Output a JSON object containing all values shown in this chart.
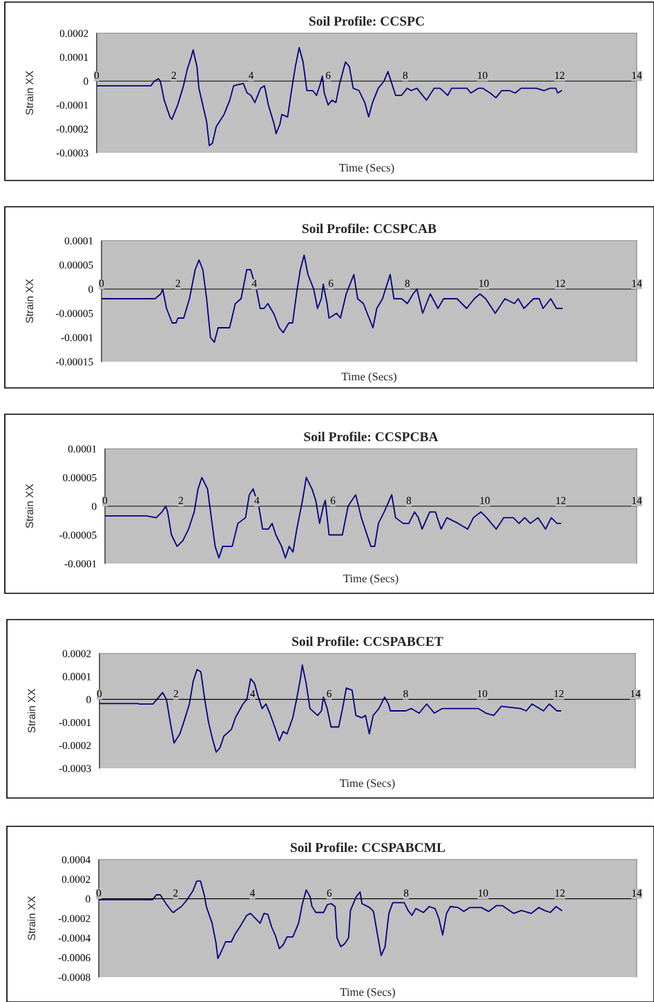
{
  "chart_data": [
    {
      "type": "line",
      "title": "Soil Profile: CCSPC",
      "xlabel": "Time (Secs)",
      "ylabel": "Strain XX",
      "xlim": [
        0,
        14
      ],
      "xticks": [
        0,
        2,
        4,
        6,
        8,
        10,
        12,
        14
      ],
      "ylim": [
        -0.0003,
        0.0002
      ],
      "yticks": [
        {
          "value": -0.0003,
          "label": "-0.0003"
        },
        {
          "value": -0.0002,
          "label": "-0.0002"
        },
        {
          "value": -0.0001,
          "label": "-0.0001"
        },
        {
          "value": 0,
          "label": "0"
        },
        {
          "value": 0.0001,
          "label": "0.0001"
        },
        {
          "value": 0.0002,
          "label": "0.0002"
        }
      ],
      "x": [
        0,
        1.4,
        1.5,
        1.6,
        1.65,
        1.75,
        1.9,
        1.95,
        2.1,
        2.25,
        2.35,
        2.45,
        2.5,
        2.6,
        2.65,
        2.75,
        2.85,
        2.92,
        3.0,
        3.1,
        3.3,
        3.45,
        3.55,
        3.8,
        3.9,
        4.0,
        4.1,
        4.25,
        4.35,
        4.45,
        4.6,
        4.65,
        4.75,
        4.8,
        4.95,
        5.05,
        5.15,
        5.25,
        5.35,
        5.45,
        5.6,
        5.7,
        5.8,
        5.85,
        5.9,
        6.0,
        6.1,
        6.2,
        6.3,
        6.45,
        6.55,
        6.65,
        6.8,
        6.95,
        7.05,
        7.15,
        7.3,
        7.45,
        7.55,
        7.65,
        7.75,
        7.9,
        8.05,
        8.15,
        8.3,
        8.55,
        8.75,
        8.9,
        9.1,
        9.2,
        9.6,
        9.7,
        9.9,
        10.0,
        10.2,
        10.35,
        10.5,
        10.7,
        10.85,
        11.0,
        11.4,
        11.6,
        11.75,
        11.9,
        11.95,
        12.05
      ],
      "series": [
        {
          "color": "#000080",
          "values": [
            -2e-05,
            -2e-05,
            0,
            1e-05,
            0,
            -8e-05,
            -0.00015,
            -0.00016,
            -0.0001,
            -2e-05,
            5e-05,
            0.0001,
            0.00013,
            6e-05,
            -3e-05,
            -0.0001,
            -0.00017,
            -0.00027,
            -0.00026,
            -0.00019,
            -0.00014,
            -8e-05,
            -2e-05,
            -1e-05,
            -5e-05,
            -6e-05,
            -9e-05,
            -3e-05,
            -2e-05,
            -0.0001,
            -0.00018,
            -0.00022,
            -0.00018,
            -0.00014,
            -0.00015,
            -4e-05,
            6e-05,
            0.00014,
            8e-05,
            -4e-05,
            -4e-05,
            -6e-05,
            -1e-05,
            2e-05,
            -5e-05,
            -0.0001,
            -8e-05,
            -9e-05,
            -1e-05,
            8e-05,
            6e-05,
            -3e-05,
            -4e-05,
            -9e-05,
            -0.00015,
            -9e-05,
            -3e-05,
            0,
            4e-05,
            -1e-05,
            -6e-05,
            -6e-05,
            -3e-05,
            -4e-05,
            -3e-05,
            -8e-05,
            -3e-05,
            -3e-05,
            -6e-05,
            -3e-05,
            -3e-05,
            -5e-05,
            -3e-05,
            -3e-05,
            -5e-05,
            -7e-05,
            -4e-05,
            -4e-05,
            -5e-05,
            -3e-05,
            -3e-05,
            -4e-05,
            -3e-05,
            -3e-05,
            -5e-05,
            -4e-05
          ]
        }
      ]
    },
    {
      "type": "line",
      "title": "Soil Profile: CCSPCAB",
      "xlabel": "Time (Secs)",
      "ylabel": "Strain XX",
      "xlim": [
        0,
        14
      ],
      "xticks": [
        0,
        2,
        4,
        6,
        8,
        10,
        12,
        14
      ],
      "ylim": [
        -0.00015,
        0.0001
      ],
      "yticks": [
        {
          "value": -0.00015,
          "label": "-0.00015"
        },
        {
          "value": -0.0001,
          "label": "-0.0001"
        },
        {
          "value": -5e-05,
          "label": "-0.00005"
        },
        {
          "value": 0,
          "label": "0"
        },
        {
          "value": 5e-05,
          "label": "0.00005"
        },
        {
          "value": 0.0001,
          "label": "0.0001"
        }
      ],
      "x": [
        0,
        1.4,
        1.55,
        1.6,
        1.7,
        1.85,
        1.95,
        2.0,
        2.15,
        2.3,
        2.45,
        2.55,
        2.65,
        2.75,
        2.85,
        2.95,
        3.05,
        3.2,
        3.35,
        3.5,
        3.65,
        3.8,
        3.9,
        4.05,
        4.15,
        4.25,
        4.35,
        4.5,
        4.65,
        4.75,
        4.9,
        5.0,
        5.1,
        5.2,
        5.3,
        5.4,
        5.55,
        5.65,
        5.75,
        5.8,
        5.9,
        5.95,
        6.15,
        6.25,
        6.4,
        6.6,
        6.7,
        6.85,
        7.0,
        7.1,
        7.2,
        7.35,
        7.55,
        7.65,
        7.85,
        8.0,
        8.15,
        8.25,
        8.4,
        8.6,
        8.8,
        8.95,
        9.3,
        9.55,
        9.75,
        9.9,
        10.05,
        10.3,
        10.55,
        10.8,
        10.9,
        11.05,
        11.3,
        11.45,
        11.55,
        11.75,
        11.9,
        12.05
      ],
      "series": [
        {
          "color": "#000080",
          "values": [
            -2e-05,
            -2e-05,
            -1e-05,
            0,
            -4e-05,
            -7e-05,
            -7e-05,
            -6e-05,
            -6e-05,
            -2e-05,
            4e-05,
            6e-05,
            4e-05,
            -2e-05,
            -0.0001,
            -0.00011,
            -8e-05,
            -8e-05,
            -8e-05,
            -3e-05,
            -2e-05,
            4e-05,
            4e-05,
            0,
            -4e-05,
            -4e-05,
            -3e-05,
            -5e-05,
            -8e-05,
            -9e-05,
            -7e-05,
            -7e-05,
            -1e-05,
            4e-05,
            7e-05,
            3e-05,
            0,
            -4e-05,
            -2e-05,
            1e-05,
            -3e-05,
            -6e-05,
            -5e-05,
            -6e-05,
            -1e-05,
            3e-05,
            -2e-05,
            -3e-05,
            -6e-05,
            -8e-05,
            -4e-05,
            -2e-05,
            3e-05,
            -2e-05,
            -2e-05,
            -3e-05,
            -1e-05,
            0,
            -5e-05,
            -1e-05,
            -4e-05,
            -2e-05,
            -2e-05,
            -4e-05,
            -2e-05,
            -1e-05,
            -2e-05,
            -5e-05,
            -2e-05,
            -3e-05,
            -2e-05,
            -4e-05,
            -2e-05,
            -2e-05,
            -4e-05,
            -2e-05,
            -4e-05,
            -4e-05
          ]
        }
      ]
    },
    {
      "type": "line",
      "title": "Soil Profile: CCSPCBA",
      "xlabel": "Time (Secs)",
      "ylabel": "Strain XX",
      "xlim": [
        0,
        14
      ],
      "xticks": [
        0,
        2,
        4,
        6,
        8,
        10,
        12,
        14
      ],
      "ylim": [
        -0.0001,
        0.0001
      ],
      "yticks": [
        {
          "value": -0.0001,
          "label": "-0.0001"
        },
        {
          "value": -5e-05,
          "label": "-0.00005"
        },
        {
          "value": 0,
          "label": "0"
        },
        {
          "value": 5e-05,
          "label": "0.00005"
        },
        {
          "value": 0.0001,
          "label": "0.0001"
        }
      ],
      "x": [
        0,
        1.1,
        1.35,
        1.5,
        1.6,
        1.65,
        1.75,
        1.9,
        2.05,
        2.2,
        2.35,
        2.45,
        2.55,
        2.7,
        2.8,
        2.9,
        3.0,
        3.1,
        3.35,
        3.5,
        3.7,
        3.8,
        3.9,
        4.05,
        4.15,
        4.3,
        4.4,
        4.5,
        4.65,
        4.75,
        4.85,
        4.95,
        5.05,
        5.2,
        5.3,
        5.45,
        5.55,
        5.65,
        5.75,
        5.8,
        5.9,
        6.1,
        6.25,
        6.4,
        6.6,
        6.75,
        6.85,
        7.0,
        7.1,
        7.2,
        7.35,
        7.55,
        7.65,
        7.85,
        8.0,
        8.15,
        8.25,
        8.35,
        8.55,
        8.7,
        8.85,
        9.0,
        9.3,
        9.55,
        9.7,
        9.9,
        10.05,
        10.3,
        10.5,
        10.75,
        10.9,
        11.05,
        11.2,
        11.4,
        11.6,
        11.75,
        11.9,
        12.0
      ],
      "series": [
        {
          "color": "#000080",
          "values": [
            -1.7e-05,
            -1.7e-05,
            -2e-05,
            -1e-05,
            0,
            -1e-05,
            -5e-05,
            -7e-05,
            -6e-05,
            -4e-05,
            -1e-05,
            3e-05,
            5e-05,
            3e-05,
            -2e-05,
            -7e-05,
            -9e-05,
            -7e-05,
            -7e-05,
            -3e-05,
            -2e-05,
            2e-05,
            3e-05,
            0,
            -4e-05,
            -4e-05,
            -3e-05,
            -5e-05,
            -7e-05,
            -9e-05,
            -7e-05,
            -8e-05,
            -4e-05,
            1e-05,
            5e-05,
            3e-05,
            1e-05,
            -3e-05,
            0,
            1e-05,
            -5e-05,
            -5e-05,
            -5e-05,
            0,
            2e-05,
            -2e-05,
            -4e-05,
            -7e-05,
            -7e-05,
            -3e-05,
            -1e-05,
            2e-05,
            -2e-05,
            -3e-05,
            -3e-05,
            -1e-05,
            -2e-05,
            -4e-05,
            -1e-05,
            -1e-05,
            -4e-05,
            -2e-05,
            -3e-05,
            -4e-05,
            -2e-05,
            -1e-05,
            -2e-05,
            -4e-05,
            -2e-05,
            -2e-05,
            -3e-05,
            -2e-05,
            -3e-05,
            -2e-05,
            -4e-05,
            -2e-05,
            -3e-05,
            -3e-05
          ]
        }
      ]
    },
    {
      "type": "line",
      "title": "Soil Profile: CCSPABCET",
      "xlabel": "Time (Secs)",
      "ylabel": "Strain XX",
      "xlim": [
        0,
        14
      ],
      "xticks": [
        0,
        2,
        4,
        6,
        8,
        10,
        12,
        14
      ],
      "ylim": [
        -0.0003,
        0.0002
      ],
      "yticks": [
        {
          "value": -0.0003,
          "label": "-0.0003"
        },
        {
          "value": -0.0002,
          "label": "-0.0002"
        },
        {
          "value": -0.0001,
          "label": "-0.0001"
        },
        {
          "value": 0,
          "label": "0"
        },
        {
          "value": 0.0001,
          "label": "0.0001"
        },
        {
          "value": 0.0002,
          "label": "0.0002"
        }
      ],
      "x": [
        0,
        1.0,
        1.05,
        1.4,
        1.55,
        1.65,
        1.75,
        1.85,
        1.95,
        2.1,
        2.2,
        2.35,
        2.45,
        2.55,
        2.65,
        2.75,
        2.85,
        2.95,
        3.05,
        3.15,
        3.25,
        3.45,
        3.55,
        3.75,
        3.85,
        3.95,
        4.05,
        4.15,
        4.25,
        4.35,
        4.45,
        4.6,
        4.7,
        4.8,
        4.9,
        5.05,
        5.15,
        5.25,
        5.3,
        5.4,
        5.5,
        5.7,
        5.8,
        5.85,
        5.95,
        6.05,
        6.25,
        6.35,
        6.45,
        6.6,
        6.7,
        6.85,
        6.95,
        7.05,
        7.15,
        7.3,
        7.45,
        7.55,
        7.6,
        8.0,
        8.15,
        8.35,
        8.55,
        8.75,
        8.95,
        9.5,
        9.9,
        10.1,
        10.3,
        10.5,
        11.0,
        11.15,
        11.3,
        11.6,
        11.75,
        11.95,
        12.05
      ],
      "series": [
        {
          "color": "#000080",
          "values": [
            -1.8e-05,
            -1.8e-05,
            -2e-05,
            -2e-05,
            1e-05,
            3e-05,
            0,
            -0.0001,
            -0.00019,
            -0.00015,
            -0.0001,
            -2e-05,
            8e-05,
            0.00013,
            0.00012,
            0,
            -0.0001,
            -0.00017,
            -0.00023,
            -0.00021,
            -0.00016,
            -0.00013,
            -8e-05,
            -2e-05,
            0,
            9e-05,
            7e-05,
            1e-05,
            -4e-05,
            -2e-05,
            -6e-05,
            -0.00013,
            -0.00018,
            -0.00014,
            -0.00015,
            -8e-05,
            0,
            9e-05,
            0.00015,
            7e-05,
            -4e-05,
            -7e-05,
            -5e-05,
            1e-05,
            -4e-05,
            -0.00012,
            -0.00012,
            -4e-05,
            5e-05,
            4e-05,
            -7e-05,
            -8e-05,
            -7e-05,
            -0.00015,
            -7e-05,
            -4e-05,
            1e-05,
            -2e-05,
            -5e-05,
            -5e-05,
            -4e-05,
            -6e-05,
            -2e-05,
            -6e-05,
            -4e-05,
            -4e-05,
            -4e-05,
            -6e-05,
            -7e-05,
            -3e-05,
            -4e-05,
            -5e-05,
            -2e-05,
            -5e-05,
            -2e-05,
            -5e-05,
            -5e-05
          ]
        }
      ]
    },
    {
      "type": "line",
      "title": "Soil Profile: CCSPABCML",
      "xlabel": "Time (Secs)",
      "ylabel": "Strain XX",
      "xlim": [
        0,
        14
      ],
      "xticks": [
        0,
        2,
        4,
        6,
        8,
        10,
        12,
        14
      ],
      "ylim": [
        -0.0008,
        0.0004
      ],
      "yticks": [
        {
          "value": -0.0008,
          "label": "-0.0008"
        },
        {
          "value": -0.0006,
          "label": "-0.0006"
        },
        {
          "value": -0.0004,
          "label": "-0.0004"
        },
        {
          "value": -0.0002,
          "label": "-0.0002"
        },
        {
          "value": 0,
          "label": "0"
        },
        {
          "value": 0.0002,
          "label": "0.0002"
        },
        {
          "value": 0.0004,
          "label": "0.0004"
        }
      ],
      "x": [
        0,
        1.4,
        1.5,
        1.6,
        1.75,
        1.9,
        1.95,
        2.0,
        2.15,
        2.3,
        2.45,
        2.55,
        2.65,
        2.75,
        2.8,
        2.95,
        3.05,
        3.1,
        3.2,
        3.3,
        3.45,
        3.55,
        3.7,
        3.85,
        3.95,
        4.05,
        4.2,
        4.3,
        4.4,
        4.5,
        4.6,
        4.7,
        4.8,
        4.9,
        5.05,
        5.2,
        5.3,
        5.4,
        5.5,
        5.55,
        5.65,
        5.85,
        5.95,
        6.05,
        6.15,
        6.2,
        6.3,
        6.4,
        6.5,
        6.55,
        6.7,
        6.8,
        6.85,
        7.05,
        7.15,
        7.25,
        7.35,
        7.45,
        7.55,
        7.65,
        7.95,
        8.05,
        8.15,
        8.25,
        8.45,
        8.6,
        8.75,
        8.85,
        8.95,
        9.05,
        9.15,
        9.35,
        9.5,
        9.65,
        9.95,
        10.15,
        10.35,
        10.5,
        10.65,
        10.8,
        11.0,
        11.25,
        11.45,
        11.6,
        11.75,
        11.9,
        12.05
      ],
      "series": [
        {
          "color": "#000080",
          "values": [
            -1e-05,
            -1e-05,
            4e-05,
            4e-05,
            -5e-05,
            -0.00013,
            -0.00014,
            -0.00012,
            -8e-05,
            -1e-05,
            8e-05,
            0.00018,
            0.00018,
            3e-05,
            -8e-05,
            -0.00025,
            -0.00045,
            -0.00061,
            -0.00053,
            -0.00044,
            -0.00044,
            -0.00036,
            -0.00027,
            -0.00017,
            -0.00015,
            -0.00019,
            -0.00025,
            -0.00015,
            -0.00016,
            -0.00029,
            -0.00038,
            -0.00051,
            -0.00047,
            -0.00039,
            -0.00039,
            -0.00025,
            -5e-05,
            9e-05,
            2e-05,
            -8e-05,
            -0.00014,
            -0.00014,
            -6e-05,
            -5e-05,
            -8e-05,
            -0.0004,
            -0.00049,
            -0.00046,
            -0.0004,
            -0.00012,
            2e-05,
            7e-05,
            -5e-05,
            -9e-05,
            -0.00013,
            -0.00036,
            -0.00058,
            -0.00049,
            -0.00015,
            -4e-05,
            -4e-05,
            -0.00012,
            -0.00017,
            -0.0001,
            -0.00014,
            -8e-05,
            -0.0001,
            -0.0002,
            -0.00037,
            -0.00015,
            -8e-05,
            -9e-05,
            -0.00013,
            -9e-05,
            -9e-05,
            -0.00013,
            -7e-05,
            -7e-05,
            -0.00011,
            -0.00015,
            -0.00012,
            -0.00015,
            -9e-05,
            -0.00012,
            -0.00014,
            -8e-05,
            -0.00012
          ]
        }
      ]
    }
  ]
}
